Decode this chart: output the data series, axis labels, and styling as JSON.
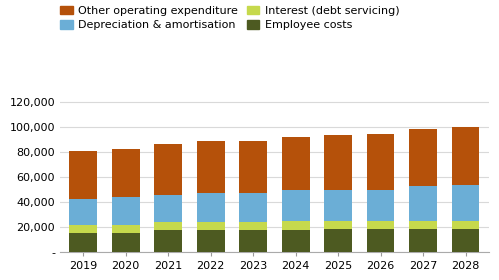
{
  "years": [
    2019,
    2020,
    2021,
    2022,
    2023,
    2024,
    2025,
    2026,
    2027,
    2028
  ],
  "employee_costs": [
    15000,
    15500,
    17500,
    17500,
    17500,
    18000,
    18500,
    18500,
    18500,
    18500
  ],
  "interest": [
    6500,
    6500,
    6500,
    6500,
    6500,
    6500,
    6000,
    6000,
    6000,
    6000
  ],
  "depreciation": [
    21000,
    22000,
    22000,
    23500,
    23500,
    25500,
    25500,
    25500,
    28500,
    29500
  ],
  "other_opex": [
    38500,
    38500,
    40500,
    41000,
    41500,
    42000,
    43500,
    44500,
    45500,
    46000
  ],
  "colors": {
    "employee_costs": "#4d5a21",
    "interest": "#c6d94c",
    "depreciation": "#6baed6",
    "other_opex": "#b5510a"
  },
  "legend_labels": [
    "Other operating expenditure",
    "Depreciation & amortisation",
    "Interest (debt servicing)",
    "Employee costs"
  ],
  "ylim": [
    0,
    130000
  ],
  "yticks": [
    0,
    20000,
    40000,
    60000,
    80000,
    100000,
    120000
  ],
  "ytick_labels": [
    "-",
    "20,000",
    "40,000",
    "60,000",
    "80,000",
    "100,000",
    "120,000"
  ],
  "bar_width": 0.65,
  "background_color": "#ffffff",
  "grid_color": "#d9d9d9",
  "font_size": 8.0
}
